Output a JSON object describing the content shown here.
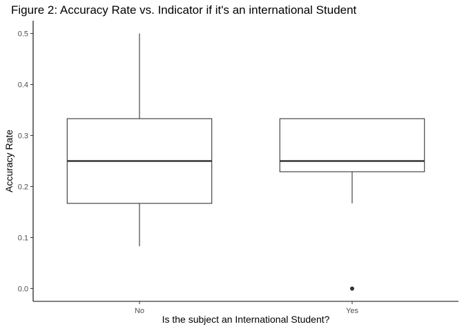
{
  "chart_data": {
    "type": "boxplot",
    "title": "Figure 2: Accuracy Rate vs. Indicator if it's an international Student",
    "xlabel": "Is the subject an International Student?",
    "ylabel": "Accuracy Rate",
    "ylim": [
      -0.025,
      0.525
    ],
    "y_ticks": [
      0.0,
      0.1,
      0.2,
      0.3,
      0.4,
      0.5
    ],
    "y_tick_labels": [
      "0.0",
      "0.1",
      "0.2",
      "0.3",
      "0.4",
      "0.5"
    ],
    "grid": false,
    "categories": [
      "No",
      "Yes"
    ],
    "boxes": [
      {
        "category": "No",
        "whisker_low": 0.083,
        "q1": 0.167,
        "median": 0.25,
        "q3": 0.333,
        "whisker_high": 0.5,
        "outliers": []
      },
      {
        "category": "Yes",
        "whisker_low": 0.167,
        "q1": 0.229,
        "median": 0.25,
        "q3": 0.333,
        "whisker_high": 0.333,
        "outliers": [
          0.0
        ]
      }
    ],
    "colors": {
      "box_stroke": "#333333",
      "box_fill": "#ffffff",
      "axis": "#000000",
      "tick_text": "#4d4d4d"
    }
  }
}
